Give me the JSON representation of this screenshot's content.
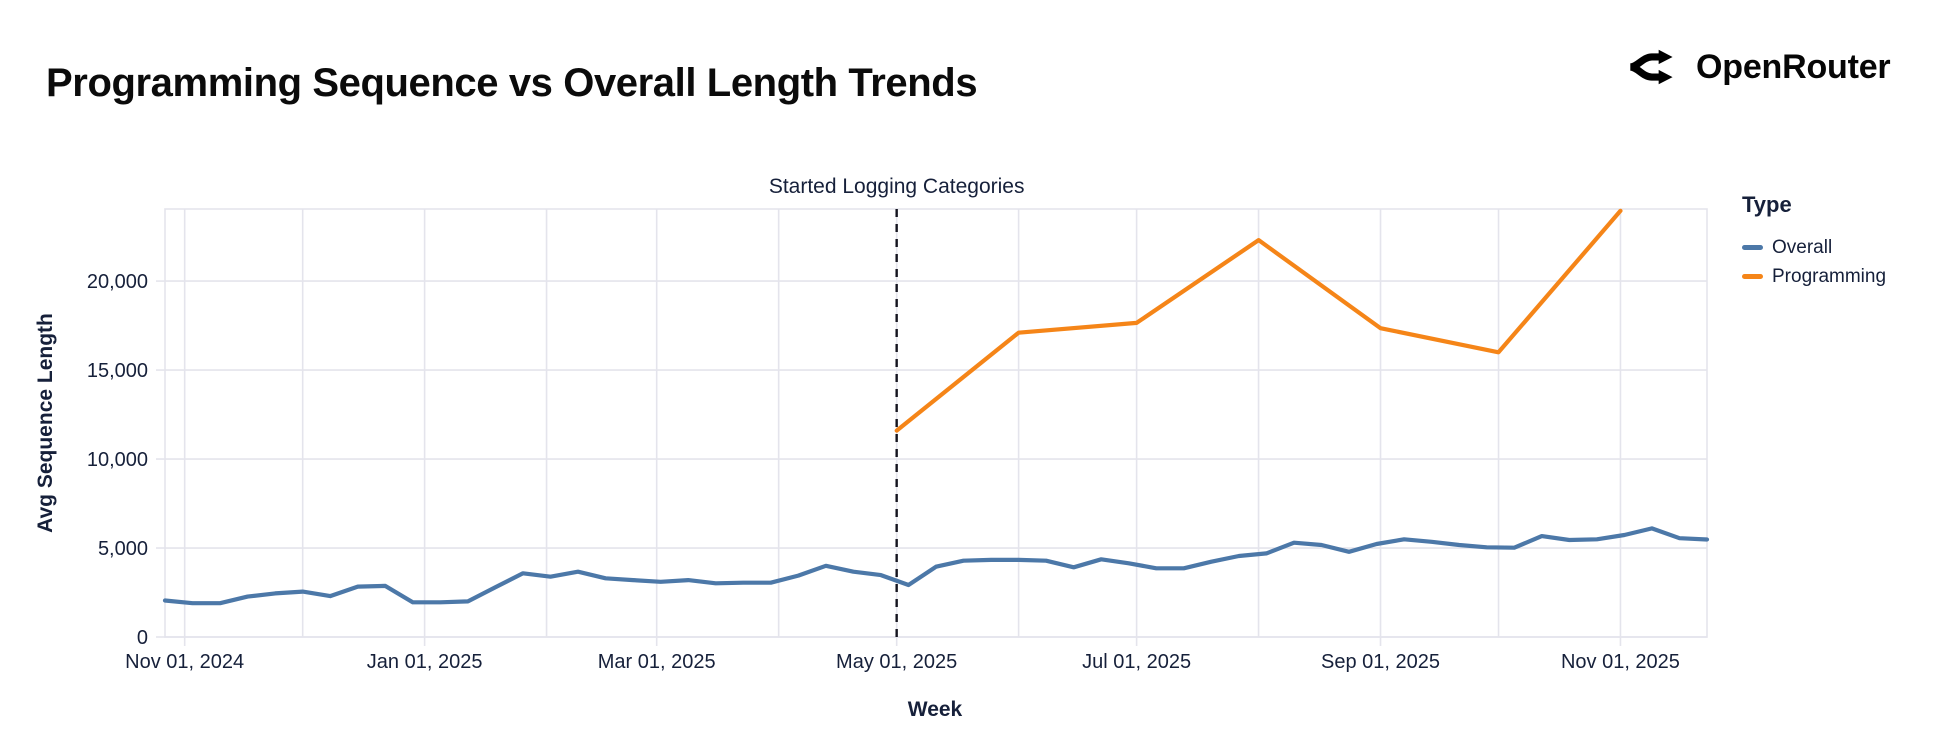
{
  "header": {
    "title": "Programming Sequence vs Overall Length Trends",
    "brand": "OpenRouter"
  },
  "chart_data": {
    "type": "line",
    "title": "Programming Sequence vs Overall Length Trends",
    "xlabel": "Week",
    "ylabel": "Avg Sequence Length",
    "legend_title": "Type",
    "legend_position": "right",
    "grid": true,
    "x_domain": [
      "2024-10-27",
      "2025-11-23"
    ],
    "y_domain": [
      0,
      24050
    ],
    "y_ticks": [
      {
        "value": 0,
        "label": "0"
      },
      {
        "value": 5000,
        "label": "5,000"
      },
      {
        "value": 10000,
        "label": "10,000"
      },
      {
        "value": 15000,
        "label": "15,000"
      },
      {
        "value": 20000,
        "label": "20,000"
      }
    ],
    "x_ticks": [
      {
        "date": "2024-11-01",
        "label": "Nov 01, 2024"
      },
      {
        "date": "2025-01-01",
        "label": "Jan 01, 2025"
      },
      {
        "date": "2025-03-01",
        "label": "Mar 01, 2025"
      },
      {
        "date": "2025-05-01",
        "label": "May 01, 2025"
      },
      {
        "date": "2025-07-01",
        "label": "Jul 01, 2025"
      },
      {
        "date": "2025-09-01",
        "label": "Sep 01, 2025"
      },
      {
        "date": "2025-11-01",
        "label": "Nov 01, 2025"
      }
    ],
    "month_gridlines": [
      "2024-11-01",
      "2024-12-01",
      "2025-01-01",
      "2025-02-01",
      "2025-03-01",
      "2025-04-01",
      "2025-05-01",
      "2025-06-01",
      "2025-07-01",
      "2025-08-01",
      "2025-09-01",
      "2025-10-01",
      "2025-11-01"
    ],
    "annotation": {
      "label": "Started Logging Categories",
      "date": "2025-05-01"
    },
    "colors": {
      "overall": "#4c78a8",
      "programming": "#f58518",
      "grid": "#e4e4ec",
      "rule": "#14141f",
      "text": "#16203a"
    },
    "series": [
      {
        "name": "Overall",
        "color": "#4c78a8",
        "points": [
          [
            "2024-10-27",
            2050
          ],
          [
            "2024-11-03",
            1900
          ],
          [
            "2024-11-10",
            1900
          ],
          [
            "2024-11-17",
            2270
          ],
          [
            "2024-11-24",
            2450
          ],
          [
            "2024-12-01",
            2550
          ],
          [
            "2024-12-08",
            2300
          ],
          [
            "2024-12-15",
            2830
          ],
          [
            "2024-12-22",
            2870
          ],
          [
            "2024-12-29",
            1950
          ],
          [
            "2025-01-05",
            1950
          ],
          [
            "2025-01-12",
            2000
          ],
          [
            "2025-01-19",
            2800
          ],
          [
            "2025-01-26",
            3580
          ],
          [
            "2025-02-02",
            3390
          ],
          [
            "2025-02-09",
            3670
          ],
          [
            "2025-02-16",
            3300
          ],
          [
            "2025-02-23",
            3200
          ],
          [
            "2025-03-02",
            3100
          ],
          [
            "2025-03-09",
            3200
          ],
          [
            "2025-03-16",
            3020
          ],
          [
            "2025-03-23",
            3050
          ],
          [
            "2025-03-30",
            3050
          ],
          [
            "2025-04-06",
            3450
          ],
          [
            "2025-04-13",
            4000
          ],
          [
            "2025-04-20",
            3670
          ],
          [
            "2025-04-27",
            3480
          ],
          [
            "2025-05-04",
            2920
          ],
          [
            "2025-05-11",
            3950
          ],
          [
            "2025-05-18",
            4290
          ],
          [
            "2025-05-25",
            4330
          ],
          [
            "2025-06-01",
            4330
          ],
          [
            "2025-06-08",
            4290
          ],
          [
            "2025-06-15",
            3915
          ],
          [
            "2025-06-22",
            4365
          ],
          [
            "2025-06-29",
            4140
          ],
          [
            "2025-07-06",
            3860
          ],
          [
            "2025-07-13",
            3860
          ],
          [
            "2025-07-20",
            4230
          ],
          [
            "2025-07-27",
            4550
          ],
          [
            "2025-08-03",
            4700
          ],
          [
            "2025-08-10",
            5300
          ],
          [
            "2025-08-17",
            5170
          ],
          [
            "2025-08-24",
            4790
          ],
          [
            "2025-08-31",
            5225
          ],
          [
            "2025-09-07",
            5490
          ],
          [
            "2025-09-14",
            5350
          ],
          [
            "2025-09-21",
            5170
          ],
          [
            "2025-09-28",
            5040
          ],
          [
            "2025-10-05",
            5020
          ],
          [
            "2025-10-12",
            5670
          ],
          [
            "2025-10-19",
            5450
          ],
          [
            "2025-10-26",
            5490
          ],
          [
            "2025-11-02",
            5730
          ],
          [
            "2025-11-09",
            6100
          ],
          [
            "2025-11-16",
            5550
          ],
          [
            "2025-11-23",
            5480
          ]
        ]
      },
      {
        "name": "Programming",
        "color": "#f58518",
        "points": [
          [
            "2025-05-01",
            11600
          ],
          [
            "2025-06-01",
            17100
          ],
          [
            "2025-07-01",
            17650
          ],
          [
            "2025-08-01",
            22300
          ],
          [
            "2025-09-01",
            17350
          ],
          [
            "2025-10-01",
            16000
          ],
          [
            "2025-11-01",
            23950
          ]
        ]
      }
    ]
  }
}
